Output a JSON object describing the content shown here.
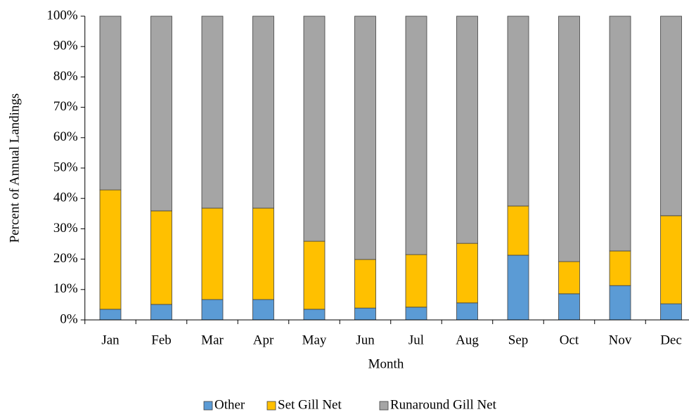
{
  "chart_data": {
    "type": "stacked_bar",
    "x_label": "Month",
    "y_label": "Percent of Annual Landings",
    "categories": [
      "Jan",
      "Feb",
      "Mar",
      "Apr",
      "May",
      "Jun",
      "Jul",
      "Aug",
      "Sep",
      "Oct",
      "Nov",
      "Dec"
    ],
    "series": [
      {
        "name": "Other",
        "color": "#5b9bd5",
        "values": [
          3.5,
          5.1,
          6.7,
          6.7,
          3.5,
          3.9,
          4.2,
          5.6,
          21.3,
          8.6,
          11.3,
          5.3
        ]
      },
      {
        "name": "Set Gill Net",
        "color": "#ffc000",
        "values": [
          39.3,
          30.8,
          30.1,
          30.1,
          22.4,
          16.0,
          17.3,
          19.6,
          16.2,
          10.6,
          11.4,
          29.0
        ]
      },
      {
        "name": "Runaround Gill Net",
        "color": "#a5a5a5",
        "values": [
          57.2,
          64.1,
          63.2,
          63.2,
          74.1,
          80.1,
          78.5,
          74.8,
          62.5,
          80.8,
          77.3,
          65.7
        ]
      }
    ],
    "ylim": [
      0,
      100
    ],
    "yticks": [
      {
        "value": 0,
        "label": "0%"
      },
      {
        "value": 10,
        "label": "10%"
      },
      {
        "value": 20,
        "label": "20%"
      },
      {
        "value": 30,
        "label": "30%"
      },
      {
        "value": 40,
        "label": "40%"
      },
      {
        "value": 50,
        "label": "50%"
      },
      {
        "value": 60,
        "label": "60%"
      },
      {
        "value": 70,
        "label": "70%"
      },
      {
        "value": 80,
        "label": "80%"
      },
      {
        "value": 90,
        "label": "90%"
      },
      {
        "value": 100,
        "label": "100%"
      }
    ],
    "legend": "bottom"
  }
}
